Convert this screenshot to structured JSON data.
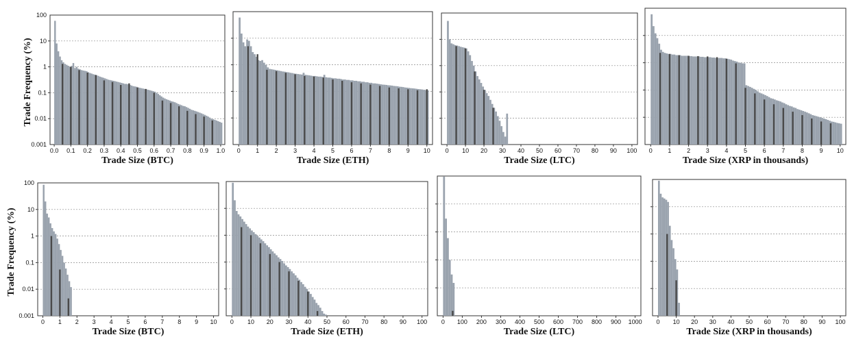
{
  "colors": {
    "light_bar": "#9aa3ae",
    "dark_bar": "#4a4a4a"
  },
  "y_axis": {
    "label": "Trade Frequency (%)",
    "ticks": [
      "100",
      "10",
      "1",
      "0.1",
      "0.01",
      "0.001"
    ],
    "ylim": [
      0.001,
      100
    ],
    "scale": "log"
  },
  "chart_data": [
    {
      "type": "bar",
      "xlabel": "Trade Size (BTC)",
      "xlim": [
        -0.025,
        1.025
      ],
      "x_ticks": [
        "0.0",
        "0.1",
        "0.2",
        "0.3",
        "0.4",
        "0.5",
        "0.6",
        "0.7",
        "0.8",
        "0.9",
        "1.0"
      ],
      "x_tick_values": [
        0,
        0.1,
        0.2,
        0.3,
        0.4,
        0.5,
        0.6,
        0.7,
        0.8,
        0.9,
        1.0
      ],
      "bins": {
        "start": 0.0,
        "width": 0.01
      },
      "light_values": [
        60,
        8,
        4,
        2.5,
        1.8,
        1.5,
        1.3,
        1.2,
        1.1,
        1.0,
        1.1,
        1.4,
        0.9,
        1.0,
        0.85,
        0.8,
        0.75,
        0.72,
        0.7,
        0.68,
        0.62,
        0.58,
        0.55,
        0.52,
        0.5,
        0.48,
        0.45,
        0.42,
        0.4,
        0.38,
        0.36,
        0.34,
        0.32,
        0.31,
        0.3,
        0.29,
        0.28,
        0.27,
        0.26,
        0.25,
        0.24,
        0.23,
        0.22,
        0.22,
        0.21,
        0.2,
        0.19,
        0.18,
        0.175,
        0.17,
        0.16,
        0.155,
        0.15,
        0.145,
        0.14,
        0.135,
        0.13,
        0.125,
        0.12,
        0.115,
        0.11,
        0.1,
        0.09,
        0.08,
        0.072,
        0.065,
        0.06,
        0.056,
        0.053,
        0.05,
        0.047,
        0.045,
        0.043,
        0.04,
        0.037,
        0.035,
        0.033,
        0.031,
        0.03,
        0.028,
        0.026,
        0.024,
        0.022,
        0.021,
        0.02,
        0.019,
        0.018,
        0.017,
        0.016,
        0.015,
        0.014,
        0.013,
        0.012,
        0.011,
        0.01,
        0.0095,
        0.009,
        0.0085,
        0.008,
        0.0075,
        0.007
      ],
      "dark_bars": [
        {
          "x": 0.05,
          "value": 1.3
        },
        {
          "x": 0.1,
          "value": 1.0
        },
        {
          "x": 0.15,
          "value": 0.75
        },
        {
          "x": 0.2,
          "value": 0.6
        },
        {
          "x": 0.25,
          "value": 0.48
        },
        {
          "x": 0.3,
          "value": 0.3
        },
        {
          "x": 0.35,
          "value": 0.26
        },
        {
          "x": 0.4,
          "value": 0.2
        },
        {
          "x": 0.45,
          "value": 0.23
        },
        {
          "x": 0.5,
          "value": 0.16
        },
        {
          "x": 0.55,
          "value": 0.14
        },
        {
          "x": 0.6,
          "value": 0.1
        },
        {
          "x": 0.65,
          "value": 0.05
        },
        {
          "x": 0.7,
          "value": 0.04
        },
        {
          "x": 0.75,
          "value": 0.03
        },
        {
          "x": 0.8,
          "value": 0.02
        },
        {
          "x": 0.85,
          "value": 0.015
        },
        {
          "x": 0.9,
          "value": 0.012
        },
        {
          "x": 0.95,
          "value": 0.0085
        }
      ]
    },
    {
      "type": "bar",
      "xlabel": "Trade Size (ETH)",
      "xlim": [
        -0.3,
        10.3
      ],
      "x_ticks": [
        "0",
        "1",
        "2",
        "3",
        "4",
        "5",
        "6",
        "7",
        "8",
        "9",
        "10"
      ],
      "x_tick_values": [
        0,
        1,
        2,
        3,
        4,
        5,
        6,
        7,
        8,
        9,
        10
      ],
      "bins": {
        "start": 0.0,
        "width": 0.1
      },
      "light_values": [
        60,
        15,
        7,
        5,
        9,
        8,
        5,
        3,
        2.5,
        2,
        1.5,
        1.4,
        1.5,
        1.2,
        1.0,
        0.8,
        0.7,
        0.68,
        0.66,
        0.64,
        0.62,
        0.6,
        0.58,
        0.56,
        0.55,
        0.53,
        0.52,
        0.5,
        0.49,
        0.47,
        0.46,
        0.45,
        0.44,
        0.43,
        0.5,
        0.42,
        0.41,
        0.4,
        0.39,
        0.38,
        0.38,
        0.37,
        0.36,
        0.36,
        0.35,
        0.42,
        0.34,
        0.33,
        0.33,
        0.32,
        0.31,
        0.31,
        0.3,
        0.3,
        0.29,
        0.28,
        0.28,
        0.27,
        0.27,
        0.26,
        0.26,
        0.25,
        0.25,
        0.24,
        0.24,
        0.23,
        0.23,
        0.22,
        0.22,
        0.21,
        0.21,
        0.2,
        0.2,
        0.195,
        0.19,
        0.185,
        0.18,
        0.178,
        0.175,
        0.17,
        0.168,
        0.165,
        0.16,
        0.158,
        0.155,
        0.15,
        0.148,
        0.145,
        0.14,
        0.138,
        0.135,
        0.132,
        0.13,
        0.128,
        0.125,
        0.122,
        0.12,
        0.118,
        0.115,
        0.112,
        0.11
      ],
      "dark_bars": [
        {
          "x": 0.5,
          "value": 5.0
        },
        {
          "x": 1.0,
          "value": 2.5
        },
        {
          "x": 1.5,
          "value": 0.65
        },
        {
          "x": 2.0,
          "value": 0.58
        },
        {
          "x": 2.5,
          "value": 0.5
        },
        {
          "x": 3.0,
          "value": 0.44
        },
        {
          "x": 3.5,
          "value": 0.38
        },
        {
          "x": 4.0,
          "value": 0.36
        },
        {
          "x": 4.5,
          "value": 0.33
        },
        {
          "x": 5.0,
          "value": 0.28
        },
        {
          "x": 5.5,
          "value": 0.25
        },
        {
          "x": 6.0,
          "value": 0.22
        },
        {
          "x": 6.5,
          "value": 0.2
        },
        {
          "x": 7.0,
          "value": 0.18
        },
        {
          "x": 7.5,
          "value": 0.16
        },
        {
          "x": 8.0,
          "value": 0.14
        },
        {
          "x": 8.5,
          "value": 0.13
        },
        {
          "x": 9.0,
          "value": 0.12
        },
        {
          "x": 9.5,
          "value": 0.11
        },
        {
          "x": 10.0,
          "value": 0.12
        }
      ]
    },
    {
      "type": "bar",
      "xlabel": "Trade Size (LTC)",
      "xlim": [
        -3,
        103
      ],
      "x_ticks": [
        "0",
        "10",
        "20",
        "30",
        "40",
        "50",
        "60",
        "70",
        "80",
        "90",
        "100"
      ],
      "x_tick_values": [
        0,
        10,
        20,
        30,
        40,
        50,
        60,
        70,
        80,
        90,
        100
      ],
      "bins": {
        "start": 0.0,
        "width": 1.0
      },
      "light_values": [
        50,
        10,
        7,
        6.5,
        6,
        5.8,
        5.5,
        5.2,
        5,
        4.8,
        4.5,
        3.5,
        2.5,
        1.5,
        1,
        0.6,
        0.4,
        0.3,
        0.22,
        0.16,
        0.12,
        0.09,
        0.07,
        0.05,
        0.035,
        0.025,
        0.018,
        0.012,
        0.008,
        0.005,
        0.003,
        0.002,
        0.015
      ],
      "dark_bars": [
        {
          "x": 5,
          "value": 5.5
        },
        {
          "x": 10,
          "value": 4.5
        },
        {
          "x": 15,
          "value": 0.6
        },
        {
          "x": 20,
          "value": 0.12
        },
        {
          "x": 25,
          "value": 0.025
        }
      ]
    },
    {
      "type": "bar",
      "xlabel": "Trade Size (XRP in thousands)",
      "xlim": [
        -0.3,
        10.3
      ],
      "x_ticks": [
        "0",
        "1",
        "2",
        "3",
        "4",
        "5",
        "6",
        "7",
        "8",
        "9",
        "10"
      ],
      "x_tick_values": [
        0,
        1,
        2,
        3,
        4,
        5,
        6,
        7,
        8,
        9,
        10
      ],
      "bins": {
        "start": 0.0,
        "width": 0.1
      },
      "light_values": [
        60,
        22,
        12,
        8,
        5,
        3,
        2.5,
        2.3,
        2.2,
        2.1,
        2.1,
        2.0,
        2.0,
        1.9,
        1.9,
        1.9,
        1.8,
        1.8,
        1.8,
        1.8,
        1.75,
        1.75,
        1.7,
        1.7,
        1.7,
        1.7,
        1.65,
        1.65,
        1.6,
        1.6,
        1.6,
        1.6,
        1.55,
        1.55,
        1.5,
        1.5,
        1.5,
        1.5,
        1.45,
        1.45,
        1.4,
        1.35,
        1.3,
        1.2,
        1.15,
        1.1,
        1.0,
        1.0,
        0.95,
        0.95,
        0.15,
        0.14,
        0.13,
        0.12,
        0.11,
        0.1,
        0.09,
        0.08,
        0.075,
        0.07,
        0.065,
        0.06,
        0.055,
        0.05,
        0.048,
        0.045,
        0.042,
        0.04,
        0.038,
        0.035,
        0.033,
        0.03,
        0.028,
        0.026,
        0.025,
        0.023,
        0.022,
        0.02,
        0.019,
        0.018,
        0.017,
        0.016,
        0.015,
        0.014,
        0.013,
        0.012,
        0.0115,
        0.011,
        0.0105,
        0.01,
        0.0095,
        0.009,
        0.0085,
        0.008,
        0.0075,
        0.007,
        0.0068,
        0.0065,
        0.0062,
        0.006,
        0.0058
      ],
      "dark_bars": [
        {
          "x": 0.5,
          "value": 2.3
        },
        {
          "x": 1.0,
          "value": 2.1
        },
        {
          "x": 1.5,
          "value": 1.9
        },
        {
          "x": 2.0,
          "value": 1.8
        },
        {
          "x": 2.5,
          "value": 1.75
        },
        {
          "x": 3.0,
          "value": 1.7
        },
        {
          "x": 3.5,
          "value": 1.6
        },
        {
          "x": 4.0,
          "value": 1.4
        },
        {
          "x": 4.5,
          "value": 0.95
        },
        {
          "x": 5.0,
          "value": 0.12
        },
        {
          "x": 5.5,
          "value": 0.075
        },
        {
          "x": 6.0,
          "value": 0.045
        },
        {
          "x": 6.5,
          "value": 0.03
        },
        {
          "x": 7.0,
          "value": 0.022
        },
        {
          "x": 7.5,
          "value": 0.016
        },
        {
          "x": 8.0,
          "value": 0.012
        },
        {
          "x": 8.5,
          "value": 0.009
        },
        {
          "x": 9.0,
          "value": 0.007
        },
        {
          "x": 9.5,
          "value": 0.006
        }
      ]
    },
    {
      "type": "bar",
      "xlabel": "Trade Size (BTC)",
      "xlim": [
        -0.3,
        10.3
      ],
      "x_ticks": [
        "0",
        "1",
        "2",
        "3",
        "4",
        "5",
        "6",
        "7",
        "8",
        "9",
        "10"
      ],
      "x_tick_values": [
        0,
        1,
        2,
        3,
        4,
        5,
        6,
        7,
        8,
        9,
        10
      ],
      "bins": {
        "start": 0.0,
        "width": 0.1
      },
      "light_values": [
        85,
        20,
        7,
        5,
        3,
        2,
        1.5,
        1.2,
        0.8,
        0.5,
        0.3,
        0.18,
        0.1,
        0.06,
        0.035,
        0.02,
        0.012
      ],
      "dark_bars": [
        {
          "x": 0.5,
          "value": 1.0
        },
        {
          "x": 1.0,
          "value": 0.055
        },
        {
          "x": 1.5,
          "value": 0.0045
        }
      ]
    },
    {
      "type": "bar",
      "xlabel": "Trade Size (ETH)",
      "xlim": [
        -3,
        103
      ],
      "x_ticks": [
        "0",
        "10",
        "20",
        "30",
        "40",
        "50",
        "60",
        "70",
        "80",
        "90",
        "100"
      ],
      "x_tick_values": [
        0,
        10,
        20,
        30,
        40,
        50,
        60,
        70,
        80,
        90,
        100
      ],
      "bins": {
        "start": 0.0,
        "width": 1.0
      },
      "light_values": [
        90,
        20,
        8,
        6,
        5,
        4,
        3.2,
        2.6,
        2.1,
        1.8,
        1.5,
        1.3,
        1.1,
        0.95,
        0.82,
        0.7,
        0.6,
        0.5,
        0.42,
        0.36,
        0.3,
        0.25,
        0.21,
        0.18,
        0.15,
        0.13,
        0.11,
        0.09,
        0.075,
        0.065,
        0.055,
        0.045,
        0.038,
        0.032,
        0.026,
        0.022,
        0.018,
        0.015,
        0.012,
        0.01,
        0.008,
        0.0065,
        0.005,
        0.004,
        0.003,
        0.0025,
        0.002,
        0.0015,
        0.0012,
        0.0011
      ],
      "dark_bars": [
        {
          "x": 5,
          "value": 2.0
        },
        {
          "x": 10,
          "value": 1.0
        },
        {
          "x": 15,
          "value": 0.5
        },
        {
          "x": 20,
          "value": 0.2
        },
        {
          "x": 25,
          "value": 0.1
        },
        {
          "x": 30,
          "value": 0.045
        },
        {
          "x": 35,
          "value": 0.02
        },
        {
          "x": 40,
          "value": 0.008
        },
        {
          "x": 45,
          "value": 0.0015
        }
      ]
    },
    {
      "type": "bar",
      "xlabel": "Trade Size (LTC)",
      "xlim": [
        -30,
        1030
      ],
      "x_ticks": [
        "0",
        "100",
        "200",
        "300",
        "400",
        "500",
        "600",
        "700",
        "800",
        "900",
        "1000"
      ],
      "x_tick_values": [
        0,
        100,
        200,
        300,
        400,
        500,
        600,
        700,
        800,
        900,
        1000
      ],
      "bins": {
        "start": 0.0,
        "width": 10.0
      },
      "light_values": [
        95,
        3,
        0.6,
        0.1,
        0.03,
        0.015
      ],
      "dark_bars": [
        {
          "x": 50,
          "value": 0.0015
        }
      ]
    },
    {
      "type": "bar",
      "xlabel": "Trade Size (XRP in thousands)",
      "xlim": [
        -3,
        103
      ],
      "x_ticks": [
        "0",
        "10",
        "20",
        "30",
        "40",
        "50",
        "60",
        "70",
        "80",
        "90",
        "100"
      ],
      "x_tick_values": [
        0,
        10,
        20,
        30,
        40,
        50,
        60,
        70,
        80,
        90,
        100
      ],
      "bins": {
        "start": 0.0,
        "width": 1.0
      },
      "light_values": [
        90,
        30,
        22,
        20,
        18,
        15,
        2,
        0.6,
        0.3,
        0.12,
        0.05,
        0.003
      ],
      "dark_bars": [
        {
          "x": 5,
          "value": 1.0
        },
        {
          "x": 10,
          "value": 0.02
        }
      ]
    }
  ]
}
